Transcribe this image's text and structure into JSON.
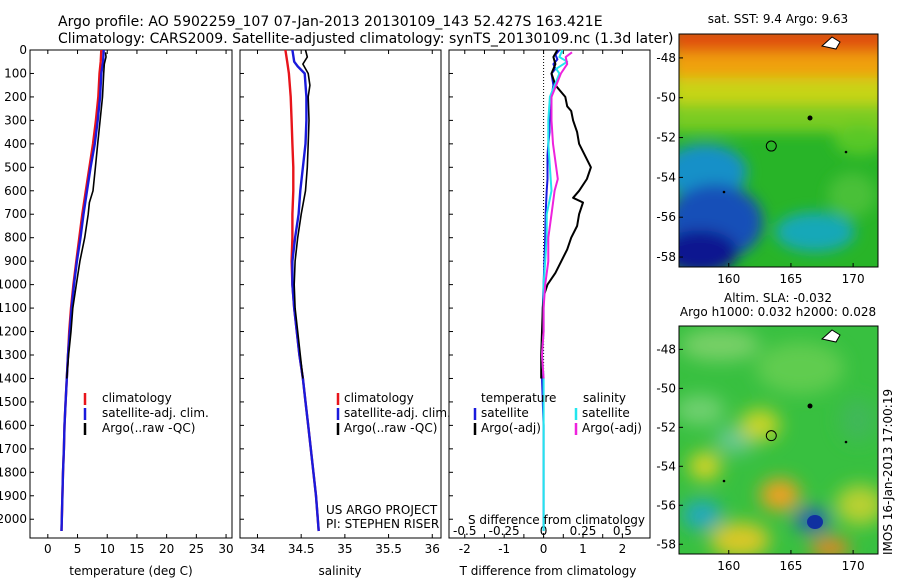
{
  "header": {
    "line1": "Argo profile: AO 5902259_107 07-Jan-2013 20130109_143 52.427S 163.421E",
    "line2": "Climatology: CARS2009. Satellite-adjusted climatology: synTS_20130109.nc (1.3d later)"
  },
  "credit": {
    "line1": "US ARGO PROJECT",
    "line2": "PI: STEPHEN RISER"
  },
  "watermark": "IMOS 16-Jan-2013 17:00:19",
  "colors": {
    "climatology": "#e8141b",
    "satellite": "#1a1adc",
    "argo": "#000000",
    "satellite_s": "#22e6ee",
    "argo_s": "#ee22dd"
  },
  "chart_data": [
    {
      "type": "line",
      "xlabel": "temperature (deg C)",
      "ylabel": "",
      "xlim": [
        -3,
        31
      ],
      "ylim": [
        2080,
        0
      ],
      "xticks": [
        "0",
        "5",
        "10",
        "15",
        "20",
        "25",
        "30"
      ],
      "yticks": [
        "0",
        "100",
        "200",
        "300",
        "400",
        "500",
        "600",
        "700",
        "800",
        "900",
        "1000",
        "1100",
        "1200",
        "1300",
        "1400",
        "1500",
        "1600",
        "1700",
        "1800",
        "1900",
        "2000"
      ],
      "legend": [
        "climatology",
        "satellite-adj. clim.",
        "Argo(..raw -QC)"
      ],
      "legend_placement": "center",
      "series": [
        {
          "name": "climatology",
          "color": "#e8141b",
          "points": [
            [
              9.0,
              0
            ],
            [
              8.9,
              50
            ],
            [
              8.7,
              100
            ],
            [
              8.5,
              200
            ],
            [
              8.1,
              300
            ],
            [
              7.6,
              400
            ],
            [
              7.0,
              500
            ],
            [
              6.4,
              600
            ],
            [
              5.8,
              700
            ],
            [
              5.3,
              800
            ],
            [
              4.8,
              900
            ],
            [
              4.3,
              1000
            ],
            [
              3.9,
              1100
            ],
            [
              3.6,
              1200
            ],
            [
              3.4,
              1300
            ],
            [
              3.2,
              1400
            ],
            [
              3.0,
              1500
            ],
            [
              2.8,
              1600
            ],
            [
              2.7,
              1700
            ],
            [
              2.55,
              1800
            ],
            [
              2.45,
              1900
            ],
            [
              2.35,
              2000
            ],
            [
              2.3,
              2050
            ]
          ]
        },
        {
          "name": "satellite-adj. clim.",
          "color": "#1a1adc",
          "points": [
            [
              9.4,
              0
            ],
            [
              9.3,
              50
            ],
            [
              9.0,
              100
            ],
            [
              8.8,
              200
            ],
            [
              8.4,
              300
            ],
            [
              7.9,
              400
            ],
            [
              7.2,
              500
            ],
            [
              6.6,
              600
            ],
            [
              6.0,
              700
            ],
            [
              5.5,
              800
            ],
            [
              4.9,
              900
            ],
            [
              4.4,
              1000
            ],
            [
              4.0,
              1100
            ],
            [
              3.7,
              1200
            ],
            [
              3.4,
              1300
            ],
            [
              3.2,
              1400
            ],
            [
              3.0,
              1500
            ],
            [
              2.8,
              1600
            ],
            [
              2.7,
              1700
            ],
            [
              2.55,
              1800
            ],
            [
              2.45,
              1900
            ],
            [
              2.35,
              2000
            ],
            [
              2.3,
              2050
            ]
          ]
        },
        {
          "name": "Argo(..raw -QC)",
          "color": "#000000",
          "points": [
            [
              9.7,
              10
            ],
            [
              9.8,
              30
            ],
            [
              9.5,
              60
            ],
            [
              9.4,
              100
            ],
            [
              9.2,
              200
            ],
            [
              8.8,
              300
            ],
            [
              8.4,
              400
            ],
            [
              8.0,
              500
            ],
            [
              7.6,
              600
            ],
            [
              7.0,
              650
            ],
            [
              6.8,
              700
            ],
            [
              6.2,
              800
            ],
            [
              5.4,
              900
            ],
            [
              4.8,
              1000
            ],
            [
              4.2,
              1100
            ],
            [
              3.9,
              1200
            ],
            [
              3.5,
              1300
            ],
            [
              3.2,
              1400
            ]
          ]
        }
      ]
    },
    {
      "type": "line",
      "xlabel": "salinity",
      "ylabel": "",
      "xlim": [
        33.8,
        36.1
      ],
      "ylim": [
        2080,
        0
      ],
      "xticks": [
        "34",
        "34.5",
        "35",
        "35.5",
        "36"
      ],
      "legend": [
        "climatology",
        "satellite-adj. clim.",
        "Argo(..raw -QC)"
      ],
      "legend_placement": "center",
      "series": [
        {
          "name": "climatology",
          "color": "#e8141b",
          "points": [
            [
              34.32,
              0
            ],
            [
              34.34,
              50
            ],
            [
              34.36,
              100
            ],
            [
              34.38,
              200
            ],
            [
              34.39,
              300
            ],
            [
              34.4,
              400
            ],
            [
              34.41,
              500
            ],
            [
              34.41,
              600
            ],
            [
              34.4,
              700
            ],
            [
              34.4,
              800
            ],
            [
              34.39,
              900
            ],
            [
              34.4,
              1000
            ],
            [
              34.42,
              1100
            ],
            [
              34.45,
              1200
            ],
            [
              34.48,
              1300
            ],
            [
              34.52,
              1400
            ],
            [
              34.55,
              1500
            ],
            [
              34.58,
              1600
            ],
            [
              34.61,
              1700
            ],
            [
              34.64,
              1800
            ],
            [
              34.67,
              1900
            ],
            [
              34.69,
              2000
            ],
            [
              34.7,
              2050
            ]
          ]
        },
        {
          "name": "satellite-adj. clim.",
          "color": "#1a1adc",
          "points": [
            [
              34.4,
              0
            ],
            [
              34.42,
              50
            ],
            [
              34.46,
              70
            ],
            [
              34.54,
              100
            ],
            [
              34.56,
              200
            ],
            [
              34.56,
              300
            ],
            [
              34.55,
              400
            ],
            [
              34.52,
              500
            ],
            [
              34.49,
              600
            ],
            [
              34.47,
              700
            ],
            [
              34.43,
              800
            ],
            [
              34.4,
              900
            ],
            [
              34.4,
              1000
            ],
            [
              34.42,
              1100
            ],
            [
              34.45,
              1200
            ],
            [
              34.48,
              1300
            ],
            [
              34.52,
              1400
            ],
            [
              34.55,
              1500
            ],
            [
              34.58,
              1600
            ],
            [
              34.61,
              1700
            ],
            [
              34.64,
              1800
            ],
            [
              34.67,
              1900
            ],
            [
              34.69,
              2000
            ],
            [
              34.7,
              2050
            ]
          ]
        },
        {
          "name": "Argo(..raw -QC)",
          "color": "#000000",
          "points": [
            [
              34.55,
              0
            ],
            [
              34.57,
              30
            ],
            [
              34.52,
              60
            ],
            [
              34.58,
              100
            ],
            [
              34.6,
              150
            ],
            [
              34.58,
              200
            ],
            [
              34.59,
              300
            ],
            [
              34.58,
              400
            ],
            [
              34.57,
              500
            ],
            [
              34.55,
              600
            ],
            [
              34.5,
              700
            ],
            [
              34.46,
              800
            ],
            [
              34.43,
              900
            ],
            [
              34.42,
              1000
            ],
            [
              34.43,
              1100
            ],
            [
              34.46,
              1200
            ],
            [
              34.49,
              1300
            ],
            [
              34.52,
              1400
            ]
          ]
        }
      ]
    },
    {
      "type": "line",
      "xlabel": "T difference from climatology",
      "xlabel_top": "S difference from climatology",
      "xlim_T": [
        -2.4,
        2.7
      ],
      "xlim_S": [
        -0.6,
        0.675
      ],
      "ylim": [
        2080,
        0
      ],
      "xticks_T": [
        "-2",
        "-1.5",
        "-1",
        "-0.5",
        "0",
        "0.5",
        "1",
        "1.5",
        "2"
      ],
      "xticks_S": [
        "-0.5",
        "-0.25",
        "0",
        "0.25",
        "0.5"
      ],
      "legend": [
        "temperature",
        "satellite",
        "Argo(-adj)",
        "salinity",
        "satellite",
        "Argo(-adj)"
      ],
      "legend_placement": "center",
      "series": [
        {
          "name": "temperature satellite",
          "axis": "T",
          "color": "#1a1adc",
          "points": [
            [
              0.4,
              0
            ],
            [
              0.3,
              20
            ],
            [
              0.35,
              40
            ],
            [
              0.25,
              60
            ],
            [
              0.3,
              80
            ],
            [
              0.2,
              100
            ],
            [
              0.25,
              150
            ],
            [
              0.2,
              200
            ],
            [
              0.18,
              250
            ],
            [
              0.15,
              300
            ],
            [
              0.15,
              350
            ],
            [
              0.12,
              400
            ],
            [
              0.1,
              450
            ],
            [
              0.1,
              500
            ],
            [
              0.1,
              550
            ],
            [
              0.08,
              600
            ],
            [
              0.05,
              700
            ],
            [
              0.04,
              800
            ],
            [
              0.02,
              900
            ],
            [
              0.0,
              1000
            ],
            [
              -0.02,
              1100
            ],
            [
              -0.02,
              1200
            ],
            [
              -0.04,
              1300
            ],
            [
              -0.04,
              1400
            ],
            [
              -0.02,
              1500
            ],
            [
              0.0,
              1600
            ],
            [
              0.0,
              2050
            ]
          ]
        },
        {
          "name": "temperature Argo(-adj)",
          "axis": "T",
          "color": "#000000",
          "points": [
            [
              0.35,
              0
            ],
            [
              0.25,
              30
            ],
            [
              0.3,
              60
            ],
            [
              0.2,
              100
            ],
            [
              0.3,
              150
            ],
            [
              0.55,
              200
            ],
            [
              0.6,
              240
            ],
            [
              0.7,
              260
            ],
            [
              0.75,
              300
            ],
            [
              0.85,
              350
            ],
            [
              0.9,
              400
            ],
            [
              1.05,
              450
            ],
            [
              1.2,
              500
            ],
            [
              1.1,
              550
            ],
            [
              0.9,
              600
            ],
            [
              0.75,
              630
            ],
            [
              1.0,
              650
            ],
            [
              0.9,
              700
            ],
            [
              0.85,
              750
            ],
            [
              0.7,
              800
            ],
            [
              0.6,
              850
            ],
            [
              0.45,
              900
            ],
            [
              0.3,
              950
            ],
            [
              0.1,
              1000
            ],
            [
              0.0,
              1050
            ],
            [
              -0.02,
              1100
            ],
            [
              -0.04,
              1200
            ],
            [
              -0.06,
              1300
            ],
            [
              -0.06,
              1400
            ]
          ]
        },
        {
          "name": "salinity satellite",
          "axis": "S",
          "color": "#22e6ee",
          "points": [
            [
              0.12,
              0
            ],
            [
              0.1,
              30
            ],
            [
              0.15,
              50
            ],
            [
              0.08,
              80
            ],
            [
              0.1,
              100
            ],
            [
              0.04,
              200
            ],
            [
              0.03,
              300
            ],
            [
              0.03,
              400
            ],
            [
              0.04,
              500
            ],
            [
              0.05,
              600
            ],
            [
              0.02,
              700
            ],
            [
              0.02,
              800
            ],
            [
              0.01,
              900
            ],
            [
              0.0,
              1000
            ],
            [
              0.0,
              1100
            ],
            [
              0.0,
              1200
            ],
            [
              -0.01,
              1300
            ],
            [
              0.0,
              1400
            ],
            [
              0.0,
              2050
            ]
          ]
        },
        {
          "name": "salinity Argo(-adj)",
          "axis": "S",
          "color": "#ee22dd",
          "points": [
            [
              0.18,
              10
            ],
            [
              0.14,
              30
            ],
            [
              0.15,
              60
            ],
            [
              0.11,
              100
            ],
            [
              0.08,
              150
            ],
            [
              0.05,
              200
            ],
            [
              0.05,
              300
            ],
            [
              0.06,
              400
            ],
            [
              0.08,
              500
            ],
            [
              0.09,
              550
            ],
            [
              0.07,
              600
            ],
            [
              0.05,
              700
            ],
            [
              0.03,
              800
            ],
            [
              0.03,
              900
            ],
            [
              0.01,
              1000
            ],
            [
              0.0,
              1100
            ],
            [
              0.0,
              1200
            ],
            [
              -0.01,
              1300
            ],
            [
              0.0,
              1400
            ]
          ]
        }
      ]
    },
    {
      "type": "heatmap",
      "title": "sat. SST: 9.4 Argo: 9.63",
      "xlim": [
        156,
        172
      ],
      "ylim": [
        -58.5,
        -46.8
      ],
      "xticks": [
        "160",
        "165",
        "170"
      ],
      "yticks": [
        "-48",
        "-50",
        "-52",
        "-54",
        "-56",
        "-58"
      ],
      "argo_marker": [
        163.421,
        -52.427
      ]
    },
    {
      "type": "heatmap",
      "title_line1": "Altim. SLA: -0.032",
      "title_line2": "Argo h1000: 0.032 h2000: 0.028",
      "xlim": [
        156,
        172
      ],
      "ylim": [
        -58.5,
        -46.8
      ],
      "xticks": [
        "160",
        "165",
        "170"
      ],
      "yticks": [
        "-48",
        "-50",
        "-52",
        "-54",
        "-56",
        "-58"
      ],
      "argo_marker": [
        163.421,
        -52.427
      ]
    }
  ]
}
